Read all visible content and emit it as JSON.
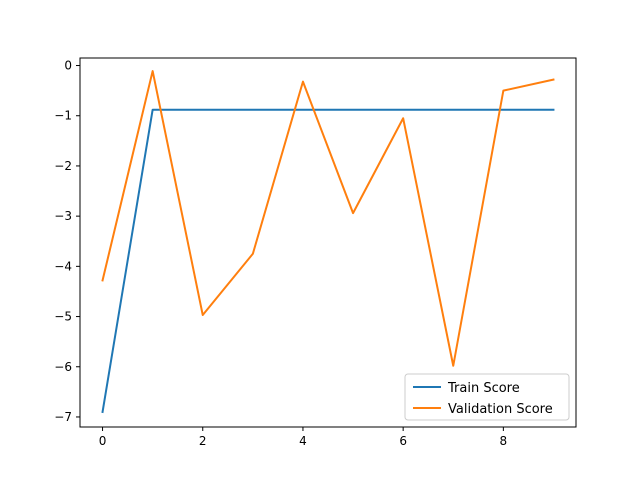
{
  "chart_data": {
    "type": "line",
    "title": "",
    "xlabel": "",
    "ylabel": "",
    "x": [
      0,
      1,
      2,
      3,
      4,
      5,
      6,
      7,
      8,
      9
    ],
    "xlim": [
      -0.45,
      9.45
    ],
    "ylim": [
      -7.2,
      0.15
    ],
    "xticks": [
      0,
      2,
      4,
      6,
      8
    ],
    "yticks": [
      0,
      -1,
      -2,
      -3,
      -4,
      -5,
      -6,
      -7
    ],
    "xtick_labels": [
      "0",
      "2",
      "4",
      "6",
      "8"
    ],
    "ytick_labels": [
      "0",
      "−1",
      "−2",
      "−3",
      "−4",
      "−5",
      "−6",
      "−7"
    ],
    "grid": false,
    "legend_position": "lower-right",
    "series": [
      {
        "name": "Train Score",
        "color": "#1f77b4",
        "values": [
          -6.9,
          -0.88,
          -0.88,
          -0.88,
          -0.88,
          -0.88,
          -0.88,
          -0.88,
          -0.88,
          -0.88
        ]
      },
      {
        "name": "Validation Score",
        "color": "#ff7f0e",
        "values": [
          -4.28,
          -0.11,
          -4.97,
          -3.75,
          -0.32,
          -2.94,
          -1.05,
          -5.98,
          -0.5,
          -0.28
        ]
      }
    ]
  }
}
